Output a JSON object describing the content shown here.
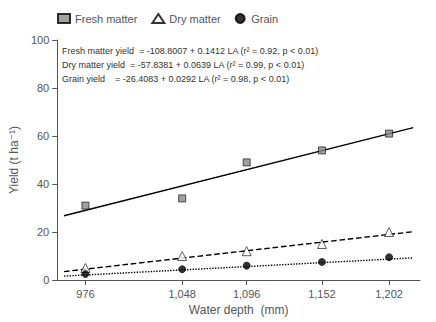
{
  "chart_data": {
    "type": "scatter",
    "xlabel": "Water depth  (mm)",
    "ylabel": "Yield (t ha⁻¹)",
    "xlim": [
      955,
      1225
    ],
    "ylim": [
      0,
      100
    ],
    "xticks": [
      976,
      1048,
      1096,
      1152,
      1202
    ],
    "yticks": [
      0,
      20,
      40,
      60,
      80,
      100
    ],
    "grid": false,
    "legend": "upper left",
    "series": [
      {
        "name": "Fresh matter",
        "type": "scatter",
        "x": [
          976,
          1048,
          1096,
          1152,
          1202
        ],
        "values": [
          31,
          34,
          49,
          54,
          61
        ],
        "color": "#888888",
        "marker": "square"
      },
      {
        "name": "Dry matter",
        "type": "scatter",
        "x": [
          976,
          1048,
          1096,
          1152,
          1202
        ],
        "values": [
          5,
          10,
          12,
          15,
          20
        ],
        "color": "#ffffff",
        "marker": "triangle"
      },
      {
        "name": "Grain",
        "type": "scatter",
        "x": [
          976,
          1048,
          1096,
          1152,
          1202
        ],
        "values": [
          2.5,
          4.5,
          6,
          7.5,
          9.5
        ],
        "color": "#000000",
        "marker": "circle"
      },
      {
        "type": "line",
        "x": [
          960,
          1220
        ],
        "values": [
          26.7513,
          63.4633
        ],
        "color": "#000000",
        "line_style": "solid"
      },
      {
        "type": "line",
        "x": [
          960,
          1220
        ],
        "values": [
          3.5059,
          20.1199
        ],
        "color": "#000000",
        "line_style": "dashed"
      },
      {
        "type": "line",
        "x": [
          960,
          1220
        ],
        "values": [
          1.6237,
          9.2157
        ],
        "color": "#000000",
        "line_style": "dotted"
      }
    ],
    "annotations": [
      "Fresh matter yield  = -108.8007 + 0.1412 LA (r² = 0.92, p < 0.01)",
      "Dry matter yield  = -57.8381 + 0.0639 LA (r² = 0.99, p < 0.01)",
      "Grain yield    = -26.4083 + 0.0292 LA (r² = 0.98, p < 0.01)"
    ]
  }
}
